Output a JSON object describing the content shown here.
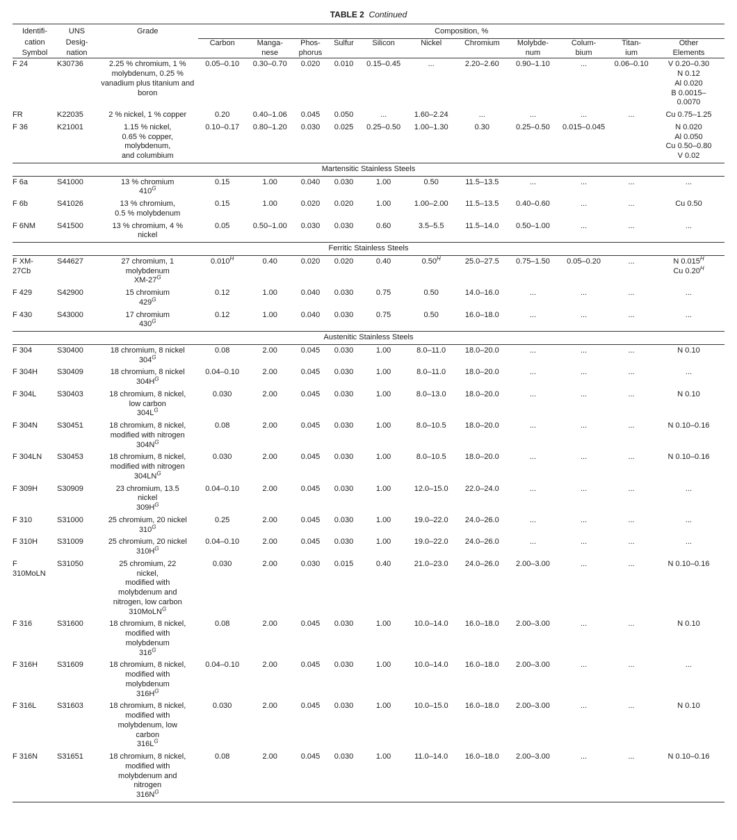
{
  "title_label": "TABLE 2",
  "title_cont": "Continued",
  "head": {
    "id": [
      "Identifi-",
      "cation",
      "Symbol"
    ],
    "uns": [
      "UNS",
      "Desig-",
      "nation"
    ],
    "grade": "Grade",
    "comp": "Composition, %",
    "cols": [
      "Carbon",
      "Manga-\nnese",
      "Phos-\nphorus",
      "Sulfur",
      "Silicon",
      "Nickel",
      "Chromium",
      "Molybde-\nnum",
      "Colum-\nbium",
      "Titan-\nium",
      "Other\nElements"
    ]
  },
  "sections": [
    {
      "name": "",
      "rows": [
        {
          "id": "F 24",
          "uns": "K30736",
          "grade": "2.25 % chromium, 1 % molybdenum, 0.25 % vanadium plus titanium and boron",
          "c": "0.05–0.10",
          "mn": "0.30–0.70",
          "p": "0.020",
          "s": "0.010",
          "si": "0.15–0.45",
          "ni": "...",
          "cr": "2.20–2.60",
          "mo": "0.90–1.10",
          "cb": "...",
          "ti": "0.06–0.10",
          "ot": "V 0.20–0.30\nN 0.12\nAl 0.020\nB 0.0015–\n0.0070"
        },
        {
          "id": "FR",
          "uns": "K22035",
          "grade": "2 % nickel, 1 % copper",
          "c": "0.20",
          "mn": "0.40–1.06",
          "p": "0.045",
          "s": "0.050",
          "si": "...",
          "ni": "1.60–2.24",
          "cr": "...",
          "mo": "...",
          "cb": "...",
          "ti": "...",
          "ot": "Cu 0.75–1.25"
        },
        {
          "id": "F 36",
          "uns": "K21001",
          "grade": "1.15 % nickel,\n0.65 % copper,\nmolybdenum,\nand columbium",
          "c": "0.10–0.17",
          "mn": "0.80–1.20",
          "p": "0.030",
          "s": "0.025",
          "si": "0.25–0.50",
          "ni": "1.00–1.30",
          "cr": "0.30",
          "mo": "0.25–0.50",
          "cb": "0.015–0.045",
          "ti": "",
          "ot": "N 0.020\nAl 0.050\nCu 0.50–0.80\nV 0.02"
        }
      ]
    },
    {
      "name": "Martensitic Stainless Steels",
      "rows": [
        {
          "id": "F 6a",
          "uns": "S41000",
          "grade": "13 % chromium\n410",
          "gsup": "G",
          "c": "0.15",
          "mn": "1.00",
          "p": "0.040",
          "s": "0.030",
          "si": "1.00",
          "ni": "0.50",
          "cr": "11.5–13.5",
          "mo": "...",
          "cb": "...",
          "ti": "...",
          "ot": "..."
        },
        {
          "id": "F 6b",
          "uns": "S41026",
          "grade": "13 % chromium,\n0.5 % molybdenum",
          "c": "0.15",
          "mn": "1.00",
          "p": "0.020",
          "s": "0.020",
          "si": "1.00",
          "ni": "1.00–2.00",
          "cr": "11.5–13.5",
          "mo": "0.40–0.60",
          "cb": "...",
          "ti": "...",
          "ot": "Cu 0.50"
        },
        {
          "id": "F 6NM",
          "uns": "S41500",
          "grade": "13 % chromium, 4 %\nnickel",
          "c": "0.05",
          "mn": "0.50–1.00",
          "p": "0.030",
          "s": "0.030",
          "si": "0.60",
          "ni": "3.5–5.5",
          "cr": "11.5–14.0",
          "mo": "0.50–1.00",
          "cb": "...",
          "ti": "...",
          "ot": "..."
        }
      ]
    },
    {
      "name": "Ferritic Stainless Steels",
      "rows": [
        {
          "id": "F XM-\n27Cb",
          "uns": "S44627",
          "grade": "27 chromium, 1\nmolybdenum\nXM-27",
          "gsup": "G",
          "c": "0.010",
          "csup": "H",
          "mn": "0.40",
          "p": "0.020",
          "s": "0.020",
          "si": "0.40",
          "ni": "0.50",
          "nisup": "H",
          "cr": "25.0–27.5",
          "mo": "0.75–1.50",
          "cb": "0.05–0.20",
          "ti": "...",
          "ot": "N  0.015<sup>H</sup>\nCu 0.20<sup>H</sup>",
          "othtml": true
        },
        {
          "id": "F 429",
          "uns": "S42900",
          "grade": "15 chromium\n429",
          "gsup": "G",
          "c": "0.12",
          "mn": "1.00",
          "p": "0.040",
          "s": "0.030",
          "si": "0.75",
          "ni": "0.50",
          "cr": "14.0–16.0",
          "mo": "...",
          "cb": "...",
          "ti": "...",
          "ot": "..."
        },
        {
          "id": "F 430",
          "uns": "S43000",
          "grade": "17 chromium\n430",
          "gsup": "G",
          "c": "0.12",
          "mn": "1.00",
          "p": "0.040",
          "s": "0.030",
          "si": "0.75",
          "ni": "0.50",
          "cr": "16.0–18.0",
          "mo": "...",
          "cb": "...",
          "ti": "...",
          "ot": "..."
        }
      ]
    },
    {
      "name": "Austenitic Stainless Steels",
      "rows": [
        {
          "id": "F 304",
          "uns": "S30400",
          "grade": "18 chromium, 8 nickel\n304",
          "gsup": "G",
          "c": "0.08",
          "mn": "2.00",
          "p": "0.045",
          "s": "0.030",
          "si": "1.00",
          "ni": "8.0–11.0",
          "cr": "18.0–20.0",
          "mo": "...",
          "cb": "...",
          "ti": "...",
          "ot": "N  0.10"
        },
        {
          "id": "F 304H",
          "uns": "S30409",
          "grade": "18 chromium, 8 nickel\n304H",
          "gsup": "G",
          "c": "0.04–0.10",
          "mn": "2.00",
          "p": "0.045",
          "s": "0.030",
          "si": "1.00",
          "ni": "8.0–11.0",
          "cr": "18.0–20.0",
          "mo": "...",
          "cb": "...",
          "ti": "...",
          "ot": "..."
        },
        {
          "id": "F 304L",
          "uns": "S30403",
          "grade": "18 chromium, 8 nickel,\nlow carbon\n304L",
          "gsup": "G",
          "c": "0.030",
          "mn": "2.00",
          "p": "0.045",
          "s": "0.030",
          "si": "1.00",
          "ni": "8.0–13.0",
          "cr": "18.0–20.0",
          "mo": "...",
          "cb": "...",
          "ti": "...",
          "ot": "N  0.10"
        },
        {
          "id": "F 304N",
          "uns": "S30451",
          "grade": "18 chromium, 8 nickel,\nmodified with nitrogen\n304N",
          "gsup": "G",
          "c": "0.08",
          "mn": "2.00",
          "p": "0.045",
          "s": "0.030",
          "si": "1.00",
          "ni": "8.0–10.5",
          "cr": "18.0–20.0",
          "mo": "...",
          "cb": "...",
          "ti": "...",
          "ot": "N 0.10–0.16"
        },
        {
          "id": "F 304LN",
          "uns": "S30453",
          "grade": "18 chromium, 8 nickel,\nmodified with nitrogen\n304LN",
          "gsup": "G",
          "c": "0.030",
          "mn": "2.00",
          "p": "0.045",
          "s": "0.030",
          "si": "1.00",
          "ni": "8.0–10.5",
          "cr": "18.0–20.0",
          "mo": "...",
          "cb": "...",
          "ti": "...",
          "ot": "N 0.10–0.16"
        },
        {
          "id": "F 309H",
          "uns": "S30909",
          "grade": "23 chromium, 13.5\nnickel\n309H",
          "gsup": "G",
          "c": "0.04–0.10",
          "mn": "2.00",
          "p": "0.045",
          "s": "0.030",
          "si": "1.00",
          "ni": "12.0–15.0",
          "cr": "22.0–24.0",
          "mo": "...",
          "cb": "...",
          "ti": "...",
          "ot": "..."
        },
        {
          "id": "F 310",
          "uns": "S31000",
          "grade": "25 chromium, 20 nickel\n310",
          "gsup": "G",
          "c": "0.25",
          "mn": "2.00",
          "p": "0.045",
          "s": "0.030",
          "si": "1.00",
          "ni": "19.0–22.0",
          "cr": "24.0–26.0",
          "mo": "...",
          "cb": "...",
          "ti": "...",
          "ot": "..."
        },
        {
          "id": "F 310H",
          "uns": "S31009",
          "grade": "25 chromium, 20 nickel\n310H",
          "gsup": "G",
          "c": "0.04–0.10",
          "mn": "2.00",
          "p": "0.045",
          "s": "0.030",
          "si": "1.00",
          "ni": "19.0–22.0",
          "cr": "24.0–26.0",
          "mo": "...",
          "cb": "...",
          "ti": "...",
          "ot": "..."
        },
        {
          "id": "F\n310MoLN",
          "uns": "S31050",
          "grade": "25 chromium, 22\nnickel,\nmodified with\nmolybdenum and\nnitrogen, low carbon\n310MoLN",
          "gsup": "G",
          "c": "0.030",
          "mn": "2.00",
          "p": "0.030",
          "s": "0.015",
          "si": "0.40",
          "ni": "21.0–23.0",
          "cr": "24.0–26.0",
          "mo": "2.00–3.00",
          "cb": "...",
          "ti": "...",
          "ot": "N 0.10–0.16"
        },
        {
          "id": "F 316",
          "uns": "S31600",
          "grade": "18 chromium, 8 nickel,\nmodified with\nmolybdenum\n316",
          "gsup": "G",
          "c": "0.08",
          "mn": "2.00",
          "p": "0.045",
          "s": "0.030",
          "si": "1.00",
          "ni": "10.0–14.0",
          "cr": "16.0–18.0",
          "mo": "2.00–3.00",
          "cb": "...",
          "ti": "...",
          "ot": "N 0.10"
        },
        {
          "id": "F 316H",
          "uns": "S31609",
          "grade": "18 chromium, 8 nickel,\nmodified with\nmolybdenum\n316H",
          "gsup": "G",
          "c": "0.04–0.10",
          "mn": "2.00",
          "p": "0.045",
          "s": "0.030",
          "si": "1.00",
          "ni": "10.0–14.0",
          "cr": "16.0–18.0",
          "mo": "2.00–3.00",
          "cb": "...",
          "ti": "...",
          "ot": "..."
        },
        {
          "id": "F 316L",
          "uns": "S31603",
          "grade": "18 chromium, 8 nickel,\nmodified with\nmolybdenum, low\ncarbon\n316L",
          "gsup": "G",
          "c": "0.030",
          "mn": "2.00",
          "p": "0.045",
          "s": "0.030",
          "si": "1.00",
          "ni": "10.0–15.0",
          "cr": "16.0–18.0",
          "mo": "2.00–3.00",
          "cb": "...",
          "ti": "...",
          "ot": "N 0.10"
        },
        {
          "id": "F 316N",
          "uns": "S31651",
          "grade": "18 chromium, 8 nickel,\nmodified with\nmolybdenum and\nnitrogen\n316N",
          "gsup": "G",
          "c": "0.08",
          "mn": "2.00",
          "p": "0.045",
          "s": "0.030",
          "si": "1.00",
          "ni": "11.0–14.0",
          "cr": "16.0–18.0",
          "mo": "2.00–3.00",
          "cb": "...",
          "ti": "...",
          "ot": "N 0.10–0.16"
        }
      ]
    }
  ]
}
